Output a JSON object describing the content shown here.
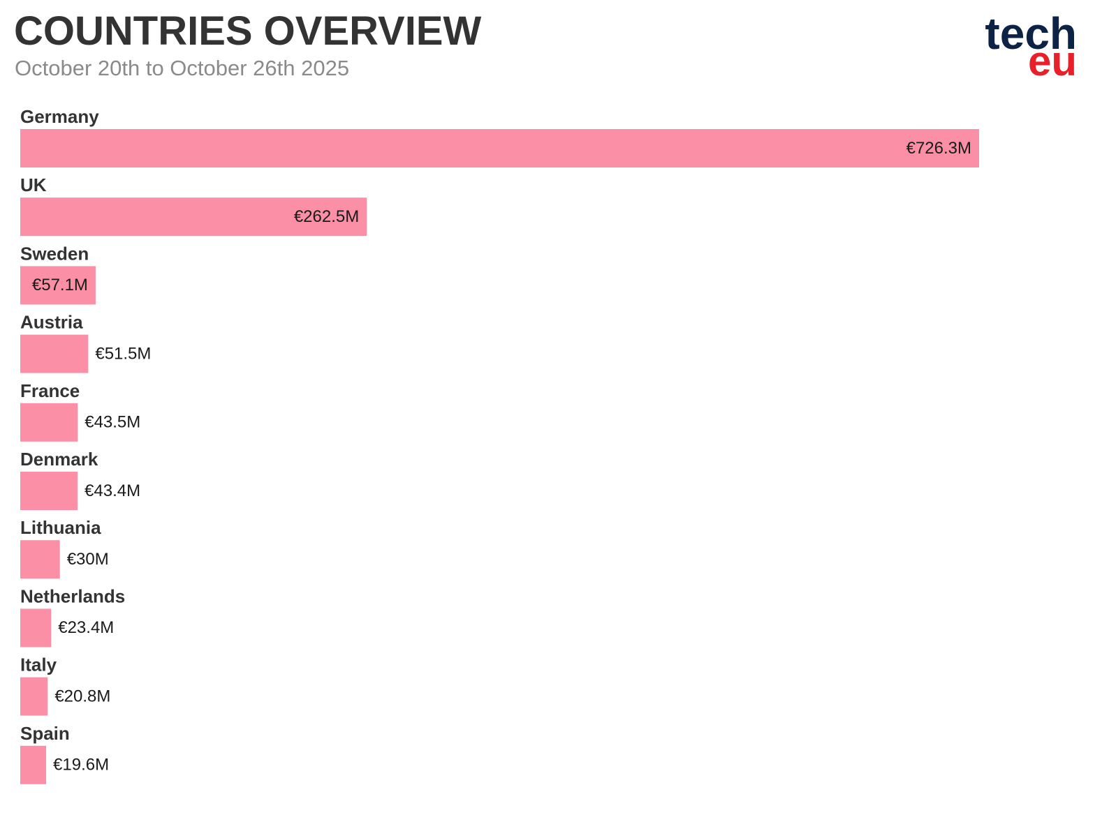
{
  "chart_data": {
    "type": "bar",
    "orientation": "horizontal",
    "title": "COUNTRIES OVERVIEW",
    "subtitle": "October 20th to October 26th 2025",
    "logo": {
      "top": "tech",
      "bottom": "eu"
    },
    "categories": [
      "Germany",
      "UK",
      "Sweden",
      "Austria",
      "France",
      "Denmark",
      "Lithuania",
      "Netherlands",
      "Italy",
      "Spain"
    ],
    "values": [
      726.3,
      262.5,
      57.1,
      51.5,
      43.5,
      43.4,
      30,
      23.4,
      20.8,
      19.6
    ],
    "value_labels": [
      "€726.3M",
      "€262.5M",
      "€57.1M",
      "€51.5M",
      "€43.5M",
      "€43.4M",
      "€30M",
      "€23.4M",
      "€20.8M",
      "€19.6M"
    ],
    "color": "#fb8fa5"
  }
}
